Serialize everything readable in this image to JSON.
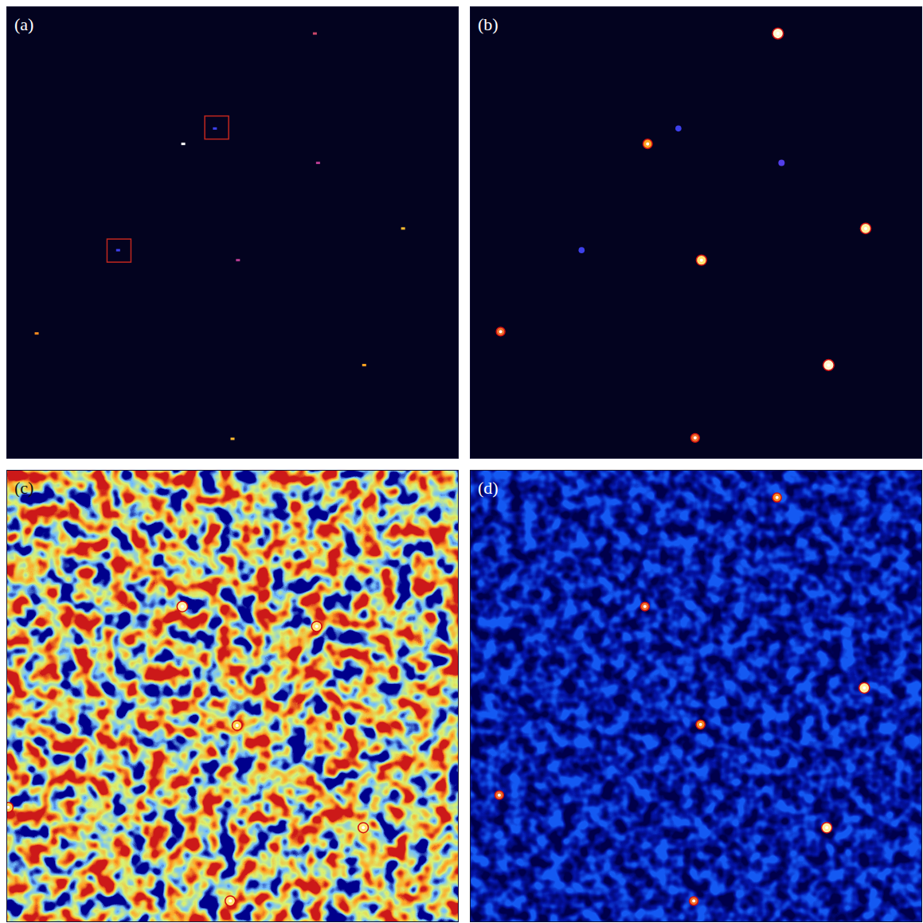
{
  "chart_data": [
    {
      "type": "image",
      "title": "(a)",
      "color": "navy",
      "marker": "dot",
      "tick_labels": false,
      "xlim": [
        0,
        100
      ],
      "ylim": [
        0,
        100
      ],
      "sources": [
        {
          "x": 68.2,
          "y": 6.0,
          "intensity": 0.5
        },
        {
          "x": 39.1,
          "y": 30.4,
          "intensity": 1.0
        },
        {
          "x": 68.9,
          "y": 34.6,
          "intensity": 0.45
        },
        {
          "x": 87.7,
          "y": 49.1,
          "intensity": 0.75
        },
        {
          "x": 51.2,
          "y": 56.1,
          "intensity": 0.45
        },
        {
          "x": 6.7,
          "y": 72.3,
          "intensity": 0.65
        },
        {
          "x": 79.1,
          "y": 79.3,
          "intensity": 0.7
        },
        {
          "x": 50.0,
          "y": 95.6,
          "intensity": 0.75
        },
        {
          "x": 46.1,
          "y": 27.0,
          "intensity": 0.2
        },
        {
          "x": 24.7,
          "y": 53.9,
          "intensity": 0.2
        }
      ],
      "boxes": [
        {
          "x": 46.5,
          "y": 26.7
        },
        {
          "x": 24.9,
          "y": 53.9
        }
      ]
    },
    {
      "type": "image",
      "title": "(b)",
      "color": "navy",
      "marker": "ring",
      "tick_labels": false,
      "xlim": [
        0,
        100
      ],
      "ylim": [
        0,
        100
      ],
      "sources": [
        {
          "x": 68.1,
          "y": 6.0,
          "intensity": 0.95
        },
        {
          "x": 39.3,
          "y": 30.4,
          "intensity": 0.7
        },
        {
          "x": 46.1,
          "y": 27.0,
          "intensity": 0.2
        },
        {
          "x": 68.9,
          "y": 34.6,
          "intensity": 0.25
        },
        {
          "x": 87.5,
          "y": 49.1,
          "intensity": 0.9
        },
        {
          "x": 24.7,
          "y": 53.9,
          "intensity": 0.2
        },
        {
          "x": 51.2,
          "y": 56.1,
          "intensity": 0.85
        },
        {
          "x": 6.8,
          "y": 71.9,
          "intensity": 0.6
        },
        {
          "x": 79.3,
          "y": 79.3,
          "intensity": 0.95
        },
        {
          "x": 49.8,
          "y": 95.4,
          "intensity": 0.6
        }
      ]
    },
    {
      "type": "noisy-image",
      "title": "(c)",
      "color": "jet",
      "marker": "ring",
      "tick_labels": false,
      "xlim": [
        0,
        100
      ],
      "ylim": [
        0,
        100
      ],
      "sources": [
        {
          "x": 38.9,
          "y": 30.2,
          "intensity": 0.9
        },
        {
          "x": 68.6,
          "y": 34.6,
          "intensity": 0.85
        },
        {
          "x": 51.0,
          "y": 56.5,
          "intensity": 0.8
        },
        {
          "x": 78.9,
          "y": 79.1,
          "intensity": 0.85
        },
        {
          "x": 49.5,
          "y": 95.3,
          "intensity": 0.85
        },
        {
          "x": 0.4,
          "y": 74.6,
          "intensity": 0.8
        }
      ]
    },
    {
      "type": "noisy-image",
      "title": "(d)",
      "color": "blue",
      "marker": "ring",
      "tick_labels": false,
      "xlim": [
        0,
        100
      ],
      "ylim": [
        0,
        100
      ],
      "sources": [
        {
          "x": 67.9,
          "y": 6.1,
          "intensity": 0.65
        },
        {
          "x": 38.7,
          "y": 30.2,
          "intensity": 0.6
        },
        {
          "x": 87.2,
          "y": 48.2,
          "intensity": 0.9
        },
        {
          "x": 51.0,
          "y": 56.3,
          "intensity": 0.65
        },
        {
          "x": 6.5,
          "y": 71.9,
          "intensity": 0.6
        },
        {
          "x": 78.9,
          "y": 79.1,
          "intensity": 0.9
        },
        {
          "x": 49.5,
          "y": 95.3,
          "intensity": 0.6
        }
      ]
    }
  ]
}
